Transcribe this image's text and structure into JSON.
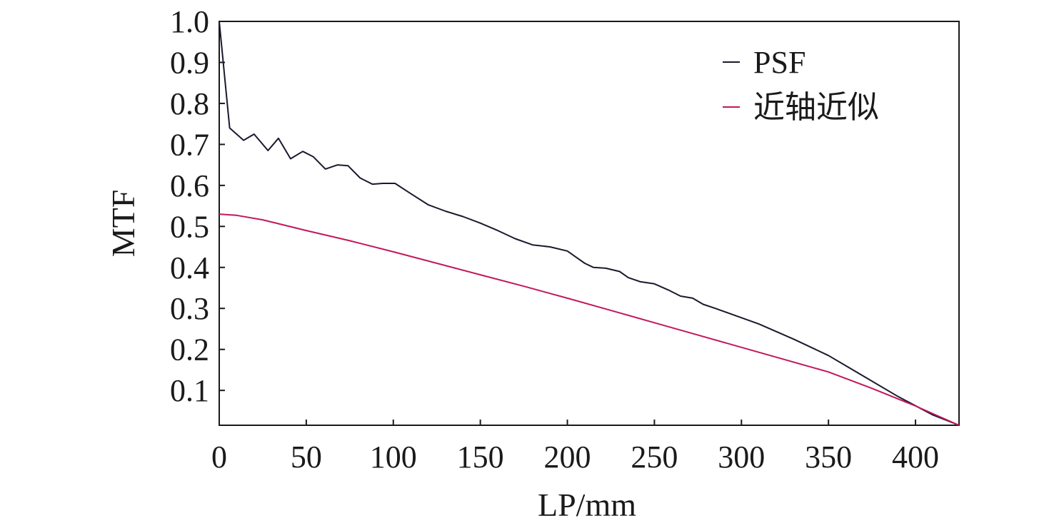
{
  "chart_data": {
    "type": "line",
    "title": "",
    "xlabel": "LP/mm",
    "ylabel": "MTF",
    "xlim": [
      0,
      425
    ],
    "ylim": [
      0.015,
      1.0
    ],
    "xticks": [
      0,
      50,
      100,
      150,
      200,
      250,
      300,
      350,
      400
    ],
    "yticks": [
      0.1,
      0.2,
      0.3,
      0.4,
      0.5,
      0.6,
      0.7,
      0.8,
      0.9,
      1.0
    ],
    "xtick_labels": [
      "0",
      "50",
      "100",
      "150",
      "200",
      "250",
      "300",
      "350",
      "400"
    ],
    "ytick_labels": [
      "0.1",
      "0.2",
      "0.3",
      "0.4",
      "0.5",
      "0.6",
      "0.7",
      "0.8",
      "0.9",
      "1.0"
    ],
    "grid": false,
    "legend_position": "top-right",
    "series": [
      {
        "name": "PSF",
        "color": "#1a1a2e",
        "x": [
          0,
          6,
          14,
          20,
          28,
          34,
          41,
          48,
          54,
          61,
          68,
          74,
          81,
          88,
          94,
          101,
          110,
          120,
          130,
          140,
          150,
          160,
          170,
          180,
          190,
          200,
          205,
          210,
          215,
          222,
          230,
          235,
          242,
          250,
          258,
          265,
          272,
          278,
          285,
          295,
          310,
          330,
          350,
          370,
          390,
          410,
          425
        ],
        "y": [
          1.0,
          0.74,
          0.71,
          0.725,
          0.685,
          0.715,
          0.665,
          0.683,
          0.67,
          0.64,
          0.65,
          0.648,
          0.618,
          0.603,
          0.605,
          0.605,
          0.58,
          0.553,
          0.537,
          0.524,
          0.508,
          0.49,
          0.47,
          0.455,
          0.45,
          0.44,
          0.425,
          0.41,
          0.4,
          0.398,
          0.39,
          0.375,
          0.365,
          0.36,
          0.345,
          0.33,
          0.325,
          0.31,
          0.3,
          0.285,
          0.262,
          0.225,
          0.185,
          0.135,
          0.085,
          0.04,
          0.015
        ]
      },
      {
        "name": "近轴近似",
        "color": "#c2185b",
        "x": [
          0,
          10,
          25,
          50,
          75,
          100,
          125,
          150,
          175,
          200,
          225,
          250,
          275,
          300,
          325,
          350,
          375,
          400,
          425
        ],
        "y": [
          0.53,
          0.527,
          0.516,
          0.49,
          0.465,
          0.438,
          0.41,
          0.382,
          0.354,
          0.325,
          0.295,
          0.265,
          0.235,
          0.205,
          0.175,
          0.145,
          0.105,
          0.062,
          0.015
        ]
      }
    ]
  }
}
